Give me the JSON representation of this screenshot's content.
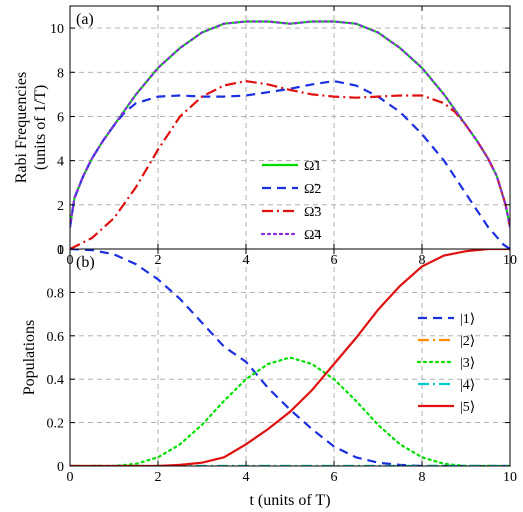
{
  "chart_data": [
    {
      "type": "line",
      "panel_label": "(a)",
      "title": "",
      "xlabel": "",
      "ylabel": "Rabi Frequencies (units of 1/T)",
      "xlim": [
        0,
        10
      ],
      "ylim": [
        0,
        11
      ],
      "x_ticks": [
        0,
        2,
        4,
        6,
        8,
        10
      ],
      "y_ticks": [
        0,
        2,
        4,
        6,
        8,
        10
      ],
      "grid": true,
      "legend_position": "center",
      "series": [
        {
          "name": "Ω̃1",
          "color": "#00e000",
          "style": "solid",
          "x": [
            0,
            0.1,
            0.3,
            0.5,
            0.75,
            1,
            1.5,
            2,
            2.5,
            3,
            3.5,
            4,
            4.5,
            5,
            5.5,
            6,
            6.5,
            7,
            7.5,
            8,
            8.5,
            9,
            9.25,
            9.5,
            9.7,
            9.9,
            10
          ],
          "y": [
            1.0,
            2.3,
            3.3,
            4.1,
            4.9,
            5.6,
            7.0,
            8.2,
            9.1,
            9.8,
            10.2,
            10.3,
            10.3,
            10.2,
            10.3,
            10.3,
            10.2,
            9.8,
            9.1,
            8.2,
            7.0,
            5.6,
            4.9,
            4.1,
            3.3,
            2.0,
            1.0
          ]
        },
        {
          "name": "Ω̃2",
          "color": "#1a2fe0",
          "style": "dashed",
          "x": [
            0,
            0.1,
            0.3,
            0.5,
            0.75,
            1,
            1.25,
            1.5,
            2,
            2.5,
            3,
            3.5,
            4,
            4.5,
            5,
            5.5,
            6,
            6.5,
            7,
            7.5,
            8,
            8.5,
            9,
            9.5,
            9.85,
            10
          ],
          "y": [
            1.0,
            2.3,
            3.3,
            4.1,
            4.9,
            5.6,
            6.2,
            6.6,
            6.9,
            6.95,
            6.9,
            6.9,
            6.95,
            7.1,
            7.25,
            7.45,
            7.6,
            7.4,
            6.9,
            6.2,
            5.2,
            4.0,
            2.5,
            1.0,
            0.2,
            0.0
          ]
        },
        {
          "name": "Ω̃3",
          "color": "#e01010",
          "style": "dashdot",
          "x": [
            0,
            0.5,
            1,
            1.5,
            2,
            2.5,
            3,
            3.5,
            4,
            4.5,
            5,
            5.5,
            6,
            6.5,
            7,
            7.5,
            8,
            8.5,
            8.75,
            9,
            9.25,
            9.5,
            9.7,
            9.9,
            10
          ],
          "y": [
            0.0,
            0.5,
            1.4,
            2.8,
            4.5,
            6.0,
            6.9,
            7.4,
            7.6,
            7.45,
            7.2,
            7.0,
            6.9,
            6.85,
            6.9,
            6.95,
            6.95,
            6.6,
            6.2,
            5.6,
            4.9,
            4.1,
            3.3,
            2.0,
            1.0
          ]
        },
        {
          "name": "Ω̃4",
          "color": "#8a2be2",
          "style": "dotted",
          "x": [
            0,
            0.1,
            0.3,
            0.5,
            0.75,
            1,
            1.5,
            2,
            2.5,
            3,
            3.5,
            4,
            4.5,
            5,
            5.5,
            6,
            6.5,
            7,
            7.5,
            8,
            8.5,
            9,
            9.25,
            9.5,
            9.7,
            9.9,
            10
          ],
          "y": [
            1.0,
            2.3,
            3.3,
            4.1,
            4.9,
            5.6,
            7.0,
            8.2,
            9.1,
            9.8,
            10.2,
            10.3,
            10.3,
            10.2,
            10.3,
            10.3,
            10.2,
            9.8,
            9.1,
            8.2,
            7.0,
            5.6,
            4.9,
            4.1,
            3.3,
            2.0,
            1.0
          ]
        }
      ]
    },
    {
      "type": "line",
      "panel_label": "(b)",
      "title": "",
      "xlabel": "t (units of T)",
      "ylabel": "Populations",
      "xlim": [
        0,
        10
      ],
      "ylim": [
        0,
        1
      ],
      "x_ticks": [
        0,
        2,
        4,
        6,
        8,
        10
      ],
      "y_ticks": [
        0,
        0.2,
        0.4,
        0.6,
        0.8,
        1
      ],
      "grid": true,
      "legend_position": "right",
      "series": [
        {
          "name": "|1⟩",
          "color": "#1a2fe0",
          "style": "dashed",
          "x": [
            0,
            0.5,
            1,
            1.5,
            2,
            2.5,
            3,
            3.5,
            4,
            4.5,
            5,
            5.5,
            6,
            6.5,
            7,
            7.5,
            8,
            9,
            10
          ],
          "y": [
            1.0,
            0.995,
            0.975,
            0.93,
            0.86,
            0.77,
            0.66,
            0.55,
            0.48,
            0.36,
            0.26,
            0.17,
            0.09,
            0.04,
            0.015,
            0.005,
            0.0,
            0.0,
            0.0
          ]
        },
        {
          "name": "|2⟩",
          "color": "#ff8c00",
          "style": "dashdot",
          "x": [
            0,
            2,
            4,
            6,
            8,
            10
          ],
          "y": [
            0.0,
            0.0,
            0.0,
            0.0,
            0.0,
            0.0
          ]
        },
        {
          "name": "|3⟩",
          "color": "#00e000",
          "style": "dotted",
          "x": [
            0,
            1,
            1.5,
            2,
            2.5,
            3,
            3.5,
            4,
            4.5,
            5,
            5.5,
            6,
            6.5,
            7,
            7.5,
            8,
            8.5,
            9,
            10
          ],
          "y": [
            0.0,
            0.0,
            0.01,
            0.04,
            0.1,
            0.19,
            0.3,
            0.4,
            0.47,
            0.5,
            0.47,
            0.4,
            0.3,
            0.19,
            0.1,
            0.04,
            0.01,
            0.0,
            0.0
          ]
        },
        {
          "name": "|4⟩",
          "color": "#00cccc",
          "style": "dashdot",
          "x": [
            0,
            2,
            4,
            6,
            8,
            10
          ],
          "y": [
            0.0,
            0.0,
            0.0,
            0.0,
            0.0,
            0.0
          ]
        },
        {
          "name": "|5⟩",
          "color": "#e01010",
          "style": "solid",
          "x": [
            0,
            1,
            2,
            2.5,
            3,
            3.5,
            4,
            4.5,
            5,
            5.5,
            6,
            6.5,
            7,
            7.5,
            8,
            8.5,
            9,
            9.5,
            10
          ],
          "y": [
            0.0,
            0.0,
            0.0,
            0.005,
            0.015,
            0.04,
            0.1,
            0.17,
            0.25,
            0.35,
            0.47,
            0.59,
            0.72,
            0.83,
            0.92,
            0.97,
            0.99,
            1.0,
            1.0
          ]
        }
      ]
    }
  ]
}
